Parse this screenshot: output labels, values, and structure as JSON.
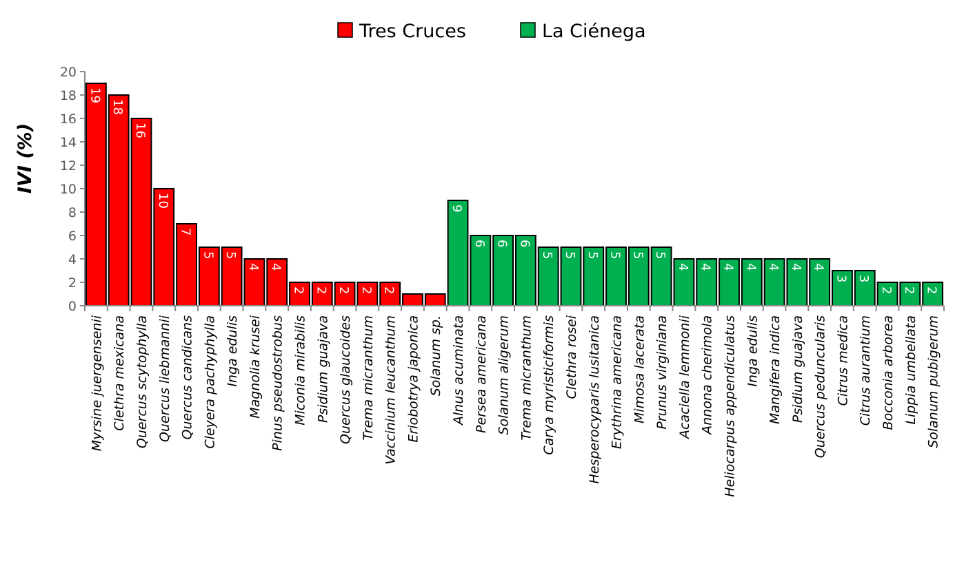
{
  "chart_data": {
    "type": "bar",
    "title": "",
    "xlabel": "",
    "ylabel": "IVI (%)",
    "ylim": [
      0,
      20
    ],
    "yticks": [
      0,
      2,
      4,
      6,
      8,
      10,
      12,
      14,
      16,
      18,
      20
    ],
    "legend_position": "top-center",
    "grid": false,
    "series": [
      {
        "name": "Tres Cruces",
        "color": "#ff0000",
        "categories": [
          "Myrsine juergensenii",
          "Clethra mexicana",
          "Quercus scytophylla",
          "Quercus liebmannii",
          "Quercus candicans",
          "Cleyera pachyphylla",
          "Inga edulis",
          "Magnolia krusei",
          "Pinus pseudostrobus",
          "Miconia mirabilis",
          "Psidium guajava",
          "Quercus glaucoides",
          "Trema micranthum",
          "Vaccinium leucanthum",
          "Eriobotrya japonica",
          "Solanum sp."
        ],
        "values": [
          19,
          18,
          16,
          10,
          7,
          5,
          5,
          4,
          4,
          2,
          2,
          2,
          2,
          2,
          1,
          1
        ],
        "labels": [
          "19",
          "18",
          "16",
          "10",
          "7",
          "5",
          "5",
          "4",
          "4",
          "2",
          "2",
          "2",
          "2",
          "2",
          "",
          ""
        ]
      },
      {
        "name": "La Ciénega",
        "color": "#00b050",
        "categories": [
          "Alnus acuminata",
          "Persea americana",
          "Solanum aligerum",
          "Trema micranthum",
          "Carya myristiciformis",
          "Clethra rosei",
          "Hesperocyparis lusitanica",
          "Erythrina americana",
          "Mimosa lacerata",
          "Prunus virginiana",
          "Acaciella lemmonii",
          "Annona cherimola",
          "Heliocarpus appendiculatus",
          "Inga edulis",
          "Mangifera indica",
          "Psidium guajava",
          "Quercus peduncularis",
          "Citrus medica",
          "Citrus aurantium",
          "Bocconia arborea",
          "Lippia umbellata",
          "Solanum pubigerum"
        ],
        "values": [
          9,
          6,
          6,
          6,
          5,
          5,
          5,
          5,
          5,
          5,
          4,
          4,
          4,
          4,
          4,
          4,
          4,
          3,
          3,
          2,
          2,
          2
        ],
        "labels": [
          "9",
          "6",
          "6",
          "6",
          "5",
          "5",
          "5",
          "5",
          "5",
          "5",
          "4",
          "4",
          "4",
          "4",
          "4",
          "4",
          "4",
          "3",
          "3",
          "2",
          "2",
          "2"
        ]
      }
    ]
  }
}
